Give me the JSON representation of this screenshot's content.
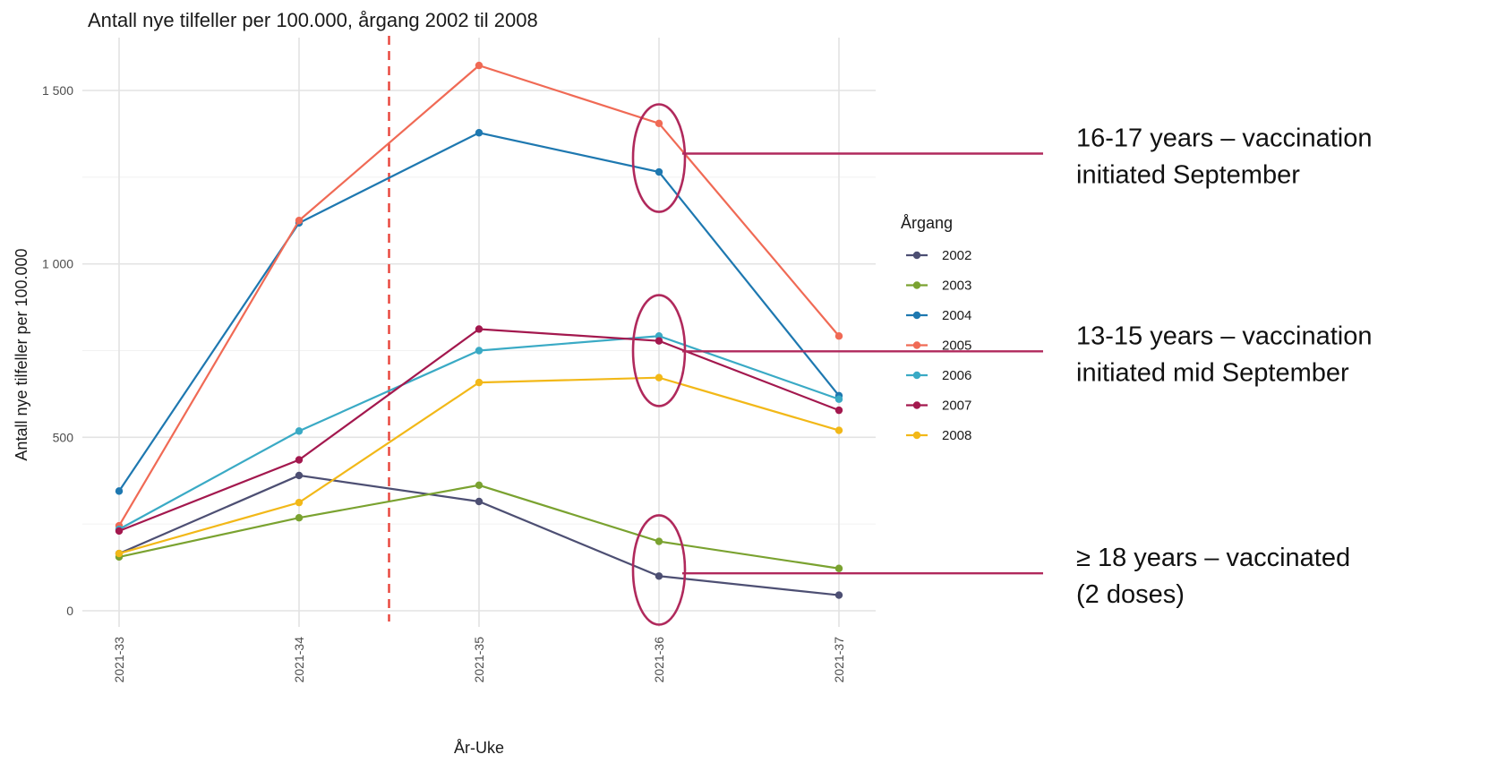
{
  "chart_data": {
    "type": "line",
    "title": "Antall nye tilfeller per 100.000, årgang 2002 til 2008",
    "xlabel": "År-Uke",
    "ylabel": "Antall nye tilfeller per 100.000",
    "categories": [
      "2021-33",
      "2021-34",
      "2021-35",
      "2021-36",
      "2021-37"
    ],
    "ylim": [
      0,
      1620
    ],
    "yticks": [
      0,
      500,
      1000,
      1500
    ],
    "ytick_labels": [
      "0",
      "500",
      "1 000",
      "1 500"
    ],
    "grid": true,
    "legend": {
      "title": "Årgang",
      "placement": "right"
    },
    "series": [
      {
        "name": "2002",
        "color": "#4d4f73",
        "values": [
          165,
          390,
          315,
          100,
          45
        ]
      },
      {
        "name": "2003",
        "color": "#7aa230",
        "values": [
          155,
          268,
          362,
          200,
          122
        ]
      },
      {
        "name": "2004",
        "color": "#1e78b0",
        "values": [
          345,
          1118,
          1378,
          1265,
          620
        ]
      },
      {
        "name": "2005",
        "color": "#f06a55",
        "values": [
          245,
          1125,
          1572,
          1405,
          792
        ]
      },
      {
        "name": "2006",
        "color": "#3aaac5",
        "values": [
          235,
          518,
          750,
          792,
          610
        ]
      },
      {
        "name": "2007",
        "color": "#a3184e",
        "values": [
          230,
          435,
          812,
          778,
          578
        ]
      },
      {
        "name": "2008",
        "color": "#f2b818",
        "values": [
          165,
          312,
          658,
          672,
          520
        ]
      }
    ],
    "reference_line": {
      "x_between": [
        "2021-34",
        "2021-35"
      ],
      "color": "#e8433a",
      "style": "dashed"
    },
    "annotations": [
      {
        "lines": [
          "16-17 years – vaccination",
          "initiated September"
        ],
        "category": "2021-36",
        "y_range": [
          1150,
          1460
        ],
        "pointer_y": 1318
      },
      {
        "lines": [
          "13-15 years – vaccination",
          "initiated mid September"
        ],
        "category": "2021-36",
        "y_range": [
          590,
          910
        ],
        "pointer_y": 748
      },
      {
        "lines": [
          "≥ 18 years – vaccinated",
          "(2 doses)"
        ],
        "category": "2021-36",
        "y_range": [
          -40,
          275
        ],
        "pointer_y": 108
      }
    ],
    "annotation_color": "#b0295c"
  }
}
